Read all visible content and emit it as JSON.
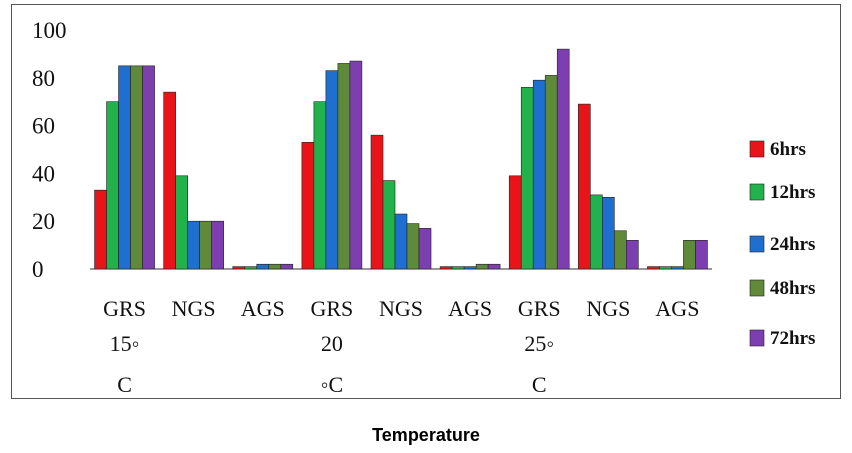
{
  "chart_data": {
    "type": "bar",
    "xlabel": "Temperature",
    "ylabel": "",
    "ylim": [
      0,
      100
    ],
    "yticks": [
      0,
      20,
      40,
      60,
      80,
      100
    ],
    "categories": [
      "GRS",
      "NGS",
      "AGS",
      "GRS",
      "NGS",
      "AGS",
      "GRS",
      "NGS",
      "AGS"
    ],
    "temperature_labels": [
      {
        "line1": "15◦",
        "line2": "C"
      },
      {
        "line1": "20",
        "line2": "◦C"
      },
      {
        "line1": "25◦",
        "line2": "C"
      }
    ],
    "series": [
      {
        "name": "6hrs",
        "color": "#e8141a",
        "values": [
          33,
          74,
          1,
          53,
          56,
          1,
          39,
          69,
          1
        ]
      },
      {
        "name": "12hrs",
        "color": "#22b24c",
        "values": [
          70,
          39,
          1,
          70,
          37,
          1,
          76,
          31,
          1
        ]
      },
      {
        "name": "24hrs",
        "color": "#1f6fd1",
        "values": [
          85,
          20,
          2,
          83,
          23,
          1,
          79,
          30,
          1
        ]
      },
      {
        "name": "48hrs",
        "color": "#5e8a3a",
        "values": [
          85,
          20,
          2,
          86,
          19,
          2,
          81,
          16,
          12
        ]
      },
      {
        "name": "72hrs",
        "color": "#7d3fb0",
        "values": [
          85,
          20,
          2,
          87,
          17,
          2,
          92,
          12,
          12
        ]
      }
    ],
    "legend_labels": [
      "6hrs",
      "12hrs",
      "24hrs",
      "48hrs",
      "72hrs"
    ],
    "legend_position": "right",
    "grid": false
  }
}
